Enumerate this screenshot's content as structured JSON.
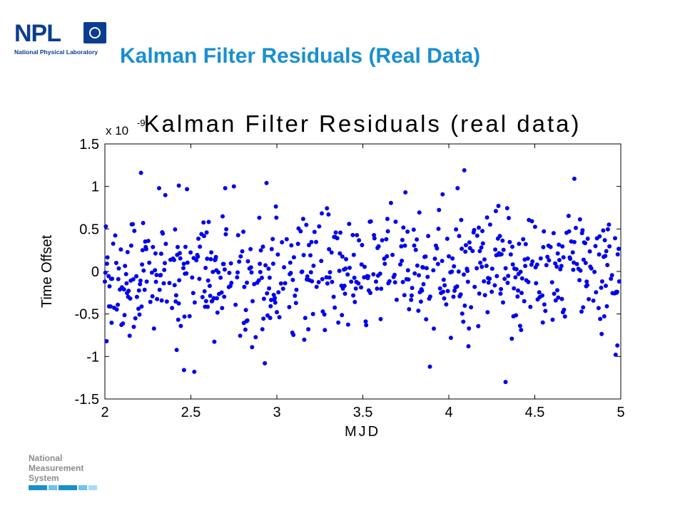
{
  "header": {
    "logo_text": "NPL",
    "logo_subtitle": "National Physical Laboratory",
    "slide_title": "Kalman Filter Residuals (Real Data)"
  },
  "footer": {
    "nms_line1": "National",
    "nms_line2": "Measurement",
    "nms_line3": "System",
    "bar_colors": [
      "#1a8fcf",
      "#6cc4f0",
      "#1a8fcf",
      "#6cc4f0",
      "#a8dcf6"
    ]
  },
  "chart_data": {
    "type": "scatter",
    "title": "Kalman Filter Residuals (real data)",
    "xlabel": "MJD",
    "ylabel": "Time Offset",
    "y_multiplier": "x 10",
    "y_exponent": "-9",
    "xlim": [
      2,
      5
    ],
    "ylim": [
      -1.5,
      1.5
    ],
    "x_ticks": [
      "2",
      "2.5",
      "3",
      "3.5",
      "4",
      "4.5",
      "5"
    ],
    "y_ticks": [
      "1.5",
      "1",
      "0.5",
      "0",
      "-0.5",
      "-1",
      "-1.5"
    ],
    "grid": false,
    "marker_color": "#0000ee",
    "sample_count": 1000,
    "outliers": [
      {
        "x": 2.21,
        "y": 1.16
      },
      {
        "x": 4.09,
        "y": 1.19
      },
      {
        "x": 4.73,
        "y": 1.09
      },
      {
        "x": 2.43,
        "y": 1.01
      },
      {
        "x": 2.75,
        "y": 1.0
      },
      {
        "x": 2.94,
        "y": 1.04
      },
      {
        "x": 2.46,
        "y": -1.16
      },
      {
        "x": 2.52,
        "y": -1.18
      },
      {
        "x": 4.33,
        "y": -1.3
      },
      {
        "x": 2.93,
        "y": -1.08
      },
      {
        "x": 3.89,
        "y": -1.12
      },
      {
        "x": 2.01,
        "y": -0.82
      },
      {
        "x": 4.98,
        "y": -0.87
      }
    ]
  }
}
